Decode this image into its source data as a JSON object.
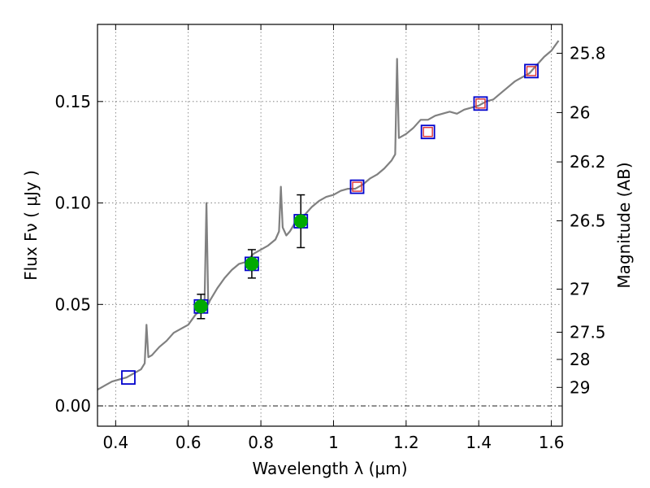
{
  "chart_data": {
    "type": "line",
    "xlabel": "Wavelength  λ (μm)",
    "ylabel": "Flux  Fν  ( μJy )",
    "ylabel_right": "Magnitude (AB)",
    "xlim": [
      0.35,
      1.63
    ],
    "ylim": [
      -0.01,
      0.188
    ],
    "grid": true,
    "x_ticks": [
      {
        "value": 0.4,
        "label": "0.4"
      },
      {
        "value": 0.6,
        "label": "0.6"
      },
      {
        "value": 0.8,
        "label": "0.8"
      },
      {
        "value": 1.0,
        "label": "1"
      },
      {
        "value": 1.2,
        "label": "1.2"
      },
      {
        "value": 1.4,
        "label": "1.4"
      },
      {
        "value": 1.6,
        "label": "1.6"
      }
    ],
    "y_ticks": [
      {
        "value": 0.0,
        "label": "0.00"
      },
      {
        "value": 0.05,
        "label": "0.05"
      },
      {
        "value": 0.1,
        "label": "0.10"
      },
      {
        "value": 0.15,
        "label": "0.15"
      }
    ],
    "y_ticks_right": [
      {
        "value": 25.8,
        "label": "25.8"
      },
      {
        "value": 26.0,
        "label": "26"
      },
      {
        "value": 26.2,
        "label": "26.2"
      },
      {
        "value": 26.5,
        "label": "26.5"
      },
      {
        "value": 27.0,
        "label": "27"
      },
      {
        "value": 27.5,
        "label": "27.5"
      },
      {
        "value": 28.0,
        "label": "28"
      },
      {
        "value": 29.0,
        "label": "29"
      }
    ],
    "series": [
      {
        "kind": "line",
        "color": "#808080",
        "x": [
          0.35,
          0.37,
          0.39,
          0.41,
          0.43,
          0.45,
          0.47,
          0.48,
          0.485,
          0.49,
          0.5,
          0.52,
          0.54,
          0.56,
          0.58,
          0.6,
          0.62,
          0.64,
          0.645,
          0.65,
          0.655,
          0.66,
          0.68,
          0.7,
          0.72,
          0.74,
          0.76,
          0.78,
          0.8,
          0.82,
          0.84,
          0.85,
          0.855,
          0.86,
          0.87,
          0.88,
          0.9,
          0.92,
          0.94,
          0.96,
          0.98,
          1.0,
          1.02,
          1.04,
          1.06,
          1.08,
          1.1,
          1.12,
          1.14,
          1.16,
          1.17,
          1.175,
          1.18,
          1.19,
          1.2,
          1.22,
          1.24,
          1.26,
          1.28,
          1.3,
          1.32,
          1.34,
          1.36,
          1.38,
          1.4,
          1.42,
          1.44,
          1.46,
          1.48,
          1.5,
          1.52,
          1.54,
          1.56,
          1.58,
          1.6,
          1.62
        ],
        "y": [
          0.008,
          0.01,
          0.012,
          0.013,
          0.014,
          0.016,
          0.018,
          0.021,
          0.04,
          0.024,
          0.025,
          0.029,
          0.032,
          0.036,
          0.038,
          0.04,
          0.045,
          0.048,
          0.052,
          0.1,
          0.05,
          0.052,
          0.058,
          0.063,
          0.067,
          0.07,
          0.071,
          0.075,
          0.077,
          0.079,
          0.082,
          0.086,
          0.108,
          0.088,
          0.084,
          0.086,
          0.092,
          0.094,
          0.098,
          0.101,
          0.103,
          0.104,
          0.106,
          0.107,
          0.107,
          0.109,
          0.112,
          0.114,
          0.117,
          0.121,
          0.124,
          0.171,
          0.132,
          0.133,
          0.134,
          0.137,
          0.141,
          0.141,
          0.143,
          0.144,
          0.145,
          0.144,
          0.146,
          0.147,
          0.148,
          0.15,
          0.151,
          0.154,
          0.157,
          0.16,
          0.162,
          0.164,
          0.168,
          0.172,
          0.175,
          0.18
        ]
      },
      {
        "kind": "markers",
        "marker": "square",
        "edge_color": "#0000cc",
        "x": [
          0.435,
          0.635,
          0.775,
          0.91,
          1.065,
          1.26,
          1.405,
          1.545
        ],
        "y": [
          0.014,
          0.049,
          0.07,
          0.091,
          0.108,
          0.135,
          0.149,
          0.165
        ]
      },
      {
        "kind": "markers",
        "marker": "square",
        "edge_color": "#dd3333",
        "x": [
          1.065,
          1.26,
          1.405,
          1.545
        ],
        "y": [
          0.108,
          0.135,
          0.149,
          0.165
        ]
      },
      {
        "kind": "markers",
        "marker": "circle",
        "color": "#00aa00",
        "x": [
          0.635,
          0.775,
          0.91
        ],
        "y": [
          0.049,
          0.07,
          0.091
        ],
        "yerr": [
          0.006,
          0.007,
          0.013
        ]
      }
    ]
  }
}
